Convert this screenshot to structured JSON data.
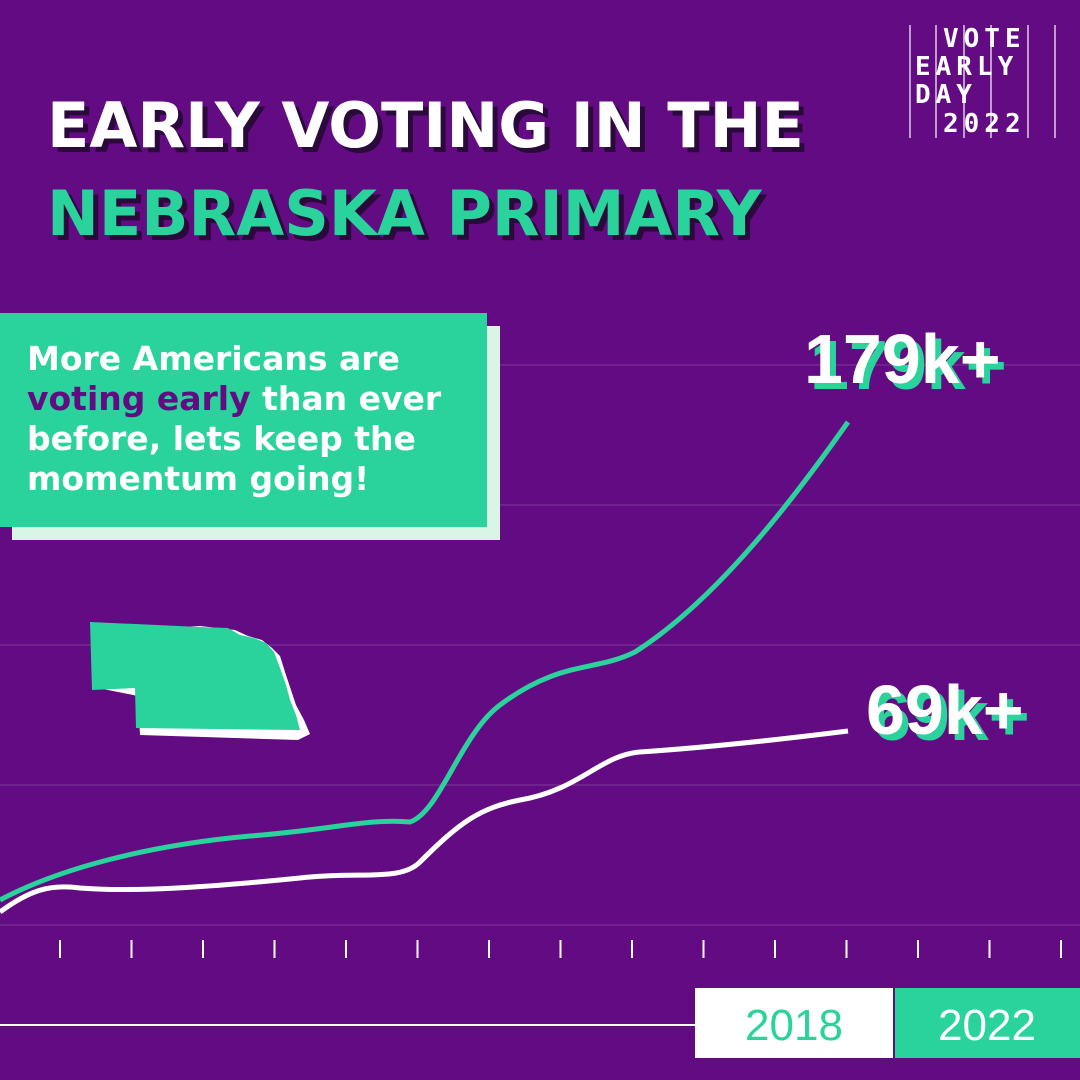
{
  "title": {
    "line1": "EARLY VOTING IN THE",
    "line2": "NEBRASKA PRIMARY"
  },
  "logo": {
    "rows": [
      "VOTE",
      "EARLY",
      "DAY",
      "2022"
    ]
  },
  "callout": {
    "lines": [
      [
        {
          "text": "More Americans are"
        }
      ],
      [
        {
          "text": "voting early",
          "highlight": true
        },
        {
          "text": " than ever"
        }
      ],
      [
        {
          "text": "before, lets keep the"
        }
      ],
      [
        {
          "text": "momentum going!"
        }
      ]
    ]
  },
  "labels": {
    "line2022": "179k+",
    "line2018": "69k+"
  },
  "legend": [
    "2018",
    "2022"
  ]
}
